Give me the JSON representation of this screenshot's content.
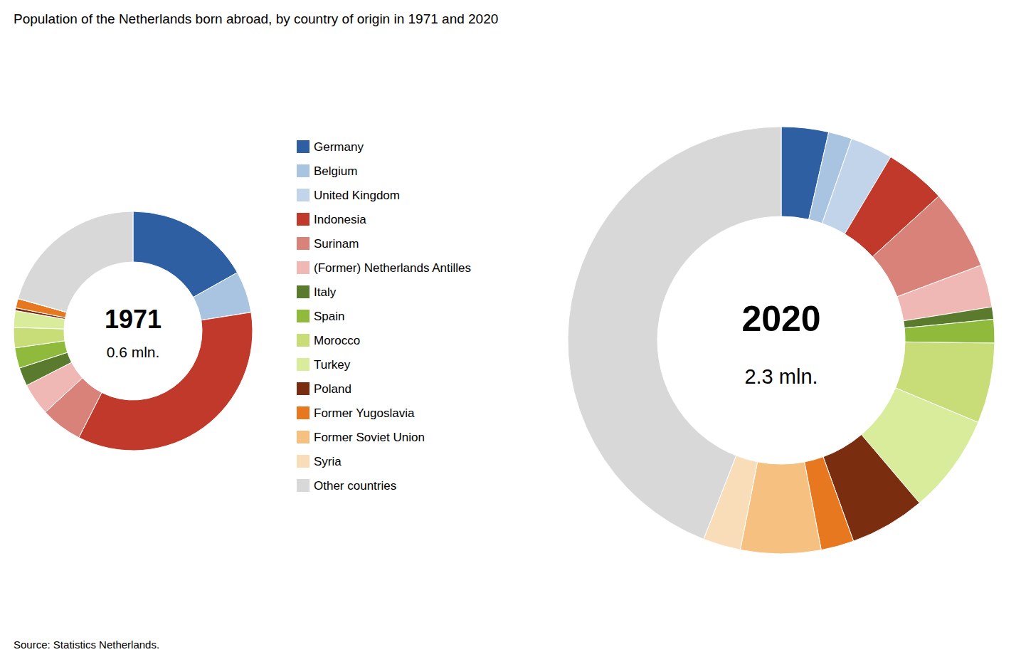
{
  "chart_data": {
    "type": "donut",
    "title": "Population of the Netherlands born abroad, by country of origin in 1971 and 2020",
    "source": "Source: Statistics Netherlands.",
    "categories": [
      "Germany",
      "Belgium",
      "United Kingdom",
      "Indonesia",
      "Surinam",
      "(Former) Netherlands Antilles",
      "Italy",
      "Spain",
      "Morocco",
      "Turkey",
      "Poland",
      "Former Yugoslavia",
      "Former Soviet Union",
      "Syria",
      "Other countries"
    ],
    "colors": [
      "#2e5fa3",
      "#a8c4e0",
      "#c2d4ea",
      "#c0392b",
      "#d9827a",
      "#f0b8b5",
      "#5a7a2e",
      "#8fba3c",
      "#c8dc78",
      "#d8ec9c",
      "#7B2D10",
      "#e87820",
      "#f5c080",
      "#f8ddb8",
      "#d8d8d8"
    ],
    "series": [
      {
        "name": "1971",
        "annotation": "0.6 mln.",
        "values": [
          13.5,
          4.5,
          0.01,
          28.0,
          4.5,
          3.5,
          2.0,
          2.2,
          2.2,
          1.8,
          0.3,
          1.0,
          0.01,
          0.01,
          16.5
        ]
      },
      {
        "name": "2020",
        "annotation": "2.3 mln.",
        "values": [
          5.0,
          2.5,
          4.5,
          6.5,
          8.5,
          4.5,
          1.3,
          2.5,
          8.5,
          10.5,
          8.0,
          3.5,
          8.5,
          4.0,
          61.7
        ]
      }
    ],
    "legend": "center"
  }
}
